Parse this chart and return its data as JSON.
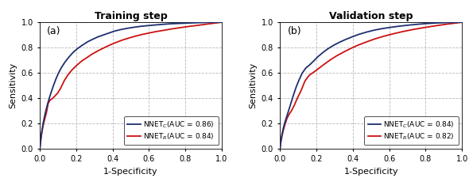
{
  "title_a": "Training step",
  "title_b": "Validation step",
  "label_a": "(a)",
  "label_b": "(b)",
  "xlabel": "1-Specificity",
  "ylabel": "Sensitivity",
  "color_C": "#1c2f6e",
  "color_R": "#cc1111",
  "xlim": [
    0,
    1
  ],
  "ylim": [
    0,
    1
  ],
  "xticks": [
    0,
    0.2,
    0.4,
    0.6,
    0.8,
    1
  ],
  "yticks": [
    0,
    0.2,
    0.4,
    0.6,
    0.8,
    1
  ],
  "legend_C_train": "NNET$_C$(AUC = 0.86)",
  "legend_R_train": "NNET$_R$(AUC = 0.84)",
  "legend_C_val": "NNET$_C$(AUC = 0.84)",
  "legend_R_val": "NNET$_R$(AUC = 0.82)",
  "train_C_fpr": [
    0,
    0.004,
    0.008,
    0.012,
    0.018,
    0.025,
    0.033,
    0.042,
    0.052,
    0.063,
    0.075,
    0.088,
    0.103,
    0.12,
    0.138,
    0.16,
    0.185,
    0.21,
    0.235,
    0.262,
    0.29,
    0.32,
    0.35,
    0.38,
    0.41,
    0.445,
    0.48,
    0.515,
    0.55,
    0.59,
    0.63,
    0.67,
    0.72,
    0.77,
    0.82,
    0.88,
    0.94,
    1.0
  ],
  "train_C_tpr": [
    0,
    0.06,
    0.11,
    0.15,
    0.2,
    0.25,
    0.3,
    0.35,
    0.4,
    0.45,
    0.5,
    0.55,
    0.6,
    0.645,
    0.685,
    0.725,
    0.765,
    0.795,
    0.82,
    0.845,
    0.865,
    0.885,
    0.9,
    0.915,
    0.93,
    0.942,
    0.952,
    0.96,
    0.967,
    0.973,
    0.978,
    0.983,
    0.988,
    0.991,
    0.994,
    0.997,
    0.999,
    1.0
  ],
  "train_R_fpr": [
    0,
    0.004,
    0.008,
    0.013,
    0.019,
    0.027,
    0.036,
    0.046,
    0.057,
    0.068,
    0.082,
    0.098,
    0.115,
    0.133,
    0.155,
    0.178,
    0.203,
    0.23,
    0.258,
    0.287,
    0.318,
    0.35,
    0.382,
    0.415,
    0.449,
    0.484,
    0.52,
    0.558,
    0.597,
    0.638,
    0.68,
    0.724,
    0.77,
    0.82,
    0.875,
    0.932,
    1.0
  ],
  "train_R_tpr": [
    0,
    0.055,
    0.1,
    0.145,
    0.19,
    0.235,
    0.285,
    0.36,
    0.385,
    0.395,
    0.415,
    0.44,
    0.48,
    0.535,
    0.585,
    0.625,
    0.66,
    0.693,
    0.72,
    0.748,
    0.773,
    0.796,
    0.818,
    0.838,
    0.857,
    0.873,
    0.888,
    0.902,
    0.914,
    0.926,
    0.936,
    0.947,
    0.957,
    0.967,
    0.977,
    0.988,
    1.0
  ],
  "val_C_fpr": [
    0,
    0.005,
    0.011,
    0.018,
    0.026,
    0.036,
    0.047,
    0.059,
    0.073,
    0.088,
    0.105,
    0.122,
    0.142,
    0.163,
    0.186,
    0.21,
    0.237,
    0.265,
    0.295,
    0.327,
    0.361,
    0.397,
    0.435,
    0.475,
    0.516,
    0.559,
    0.604,
    0.65,
    0.698,
    0.748,
    0.8,
    0.855,
    0.912,
    1.0
  ],
  "val_C_tpr": [
    0,
    0.065,
    0.115,
    0.16,
    0.205,
    0.25,
    0.3,
    0.355,
    0.42,
    0.485,
    0.545,
    0.598,
    0.638,
    0.663,
    0.695,
    0.73,
    0.762,
    0.792,
    0.818,
    0.842,
    0.864,
    0.885,
    0.905,
    0.922,
    0.937,
    0.949,
    0.959,
    0.968,
    0.976,
    0.983,
    0.989,
    0.994,
    0.997,
    1.0
  ],
  "val_R_fpr": [
    0,
    0.005,
    0.011,
    0.018,
    0.027,
    0.037,
    0.049,
    0.063,
    0.079,
    0.097,
    0.116,
    0.137,
    0.16,
    0.185,
    0.213,
    0.243,
    0.276,
    0.311,
    0.349,
    0.389,
    0.431,
    0.476,
    0.523,
    0.572,
    0.623,
    0.677,
    0.733,
    0.792,
    0.854,
    0.918,
    1.0
  ],
  "val_R_tpr": [
    0,
    0.055,
    0.1,
    0.145,
    0.19,
    0.235,
    0.27,
    0.3,
    0.345,
    0.405,
    0.46,
    0.535,
    0.58,
    0.605,
    0.635,
    0.668,
    0.702,
    0.734,
    0.764,
    0.793,
    0.82,
    0.845,
    0.869,
    0.89,
    0.909,
    0.927,
    0.943,
    0.958,
    0.972,
    0.985,
    1.0
  ]
}
